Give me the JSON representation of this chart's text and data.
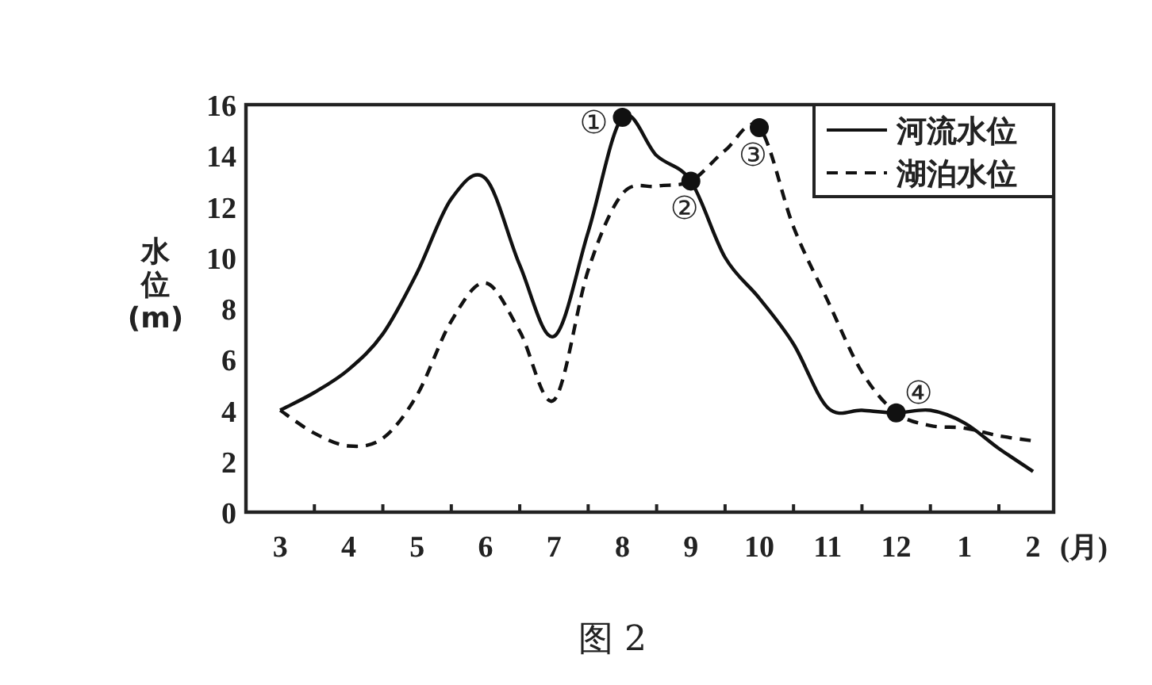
{
  "chart_data": {
    "type": "line",
    "xlabel": "(月)",
    "ylabel": "水位(m)",
    "categories": [
      "3",
      null,
      "4",
      null,
      "5",
      null,
      "6",
      null,
      "7",
      null,
      "8",
      null,
      "9",
      null,
      "10",
      null,
      "11",
      null,
      "12",
      null,
      "1",
      null,
      "2"
    ],
    "ylim": [
      0,
      16
    ],
    "yticks": [
      0,
      2,
      4,
      6,
      8,
      10,
      12,
      14,
      16
    ],
    "legend": "top right",
    "series": [
      {
        "name": "河流水位",
        "color": "#111111",
        "line_style": "solid",
        "values": [
          4,
          4.7,
          5.6,
          7.0,
          9.4,
          12.3,
          13.1,
          9.7,
          6.9,
          11.0,
          15.5,
          14.0,
          13,
          10.0,
          8.4,
          6.6,
          4.1,
          4.0,
          3.9,
          4.0,
          3.5,
          2.5,
          1.6
        ]
      },
      {
        "name": "湖泊水位",
        "color": "#111111",
        "line_style": "dashed",
        "values": [
          4,
          3.1,
          2.6,
          2.9,
          4.6,
          7.5,
          9.0,
          7.1,
          4.4,
          9.5,
          12.5,
          12.8,
          13,
          14.2,
          15.1,
          11.2,
          8.3,
          5.5,
          3.9,
          3.4,
          3.3,
          3.0,
          2.8
        ]
      }
    ],
    "annotations": [
      {
        "text": "①",
        "x": "8",
        "y": 15.5
      },
      {
        "text": "②",
        "x": "9",
        "y": 13
      },
      {
        "text": "③",
        "x": "10",
        "y": 15.1
      },
      {
        "text": "④",
        "x": "12",
        "y": 3.9
      },
      "图 2"
    ]
  }
}
